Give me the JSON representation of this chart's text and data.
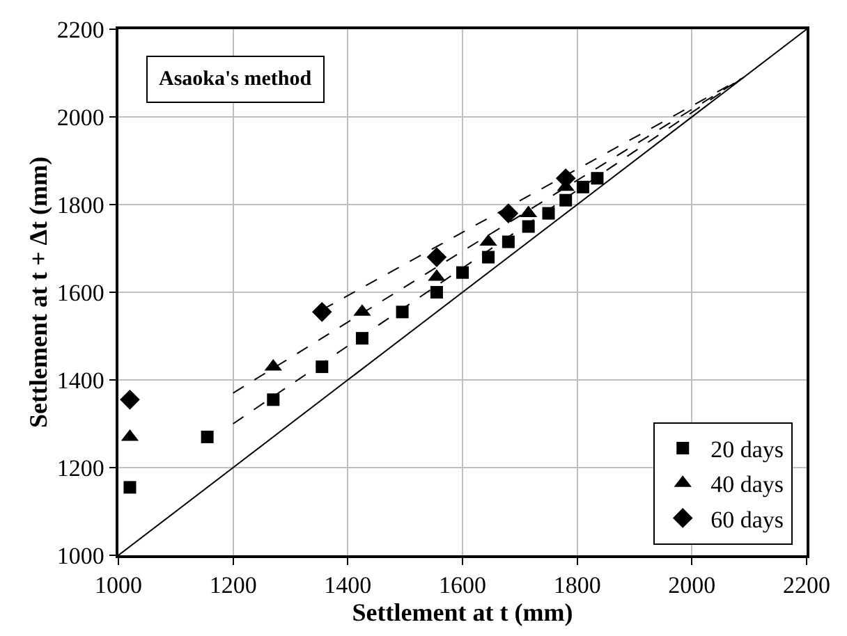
{
  "chart_data": {
    "type": "scatter",
    "xlabel": "Settlement at t (mm)",
    "ylabel": "Settlement at t + Δt (mm)",
    "xlim": [
      1000,
      2200
    ],
    "ylim": [
      1000,
      2200
    ],
    "xticks": [
      1000,
      1200,
      1400,
      1600,
      1800,
      2000,
      2200
    ],
    "yticks": [
      1000,
      1200,
      1400,
      1600,
      1800,
      2000,
      2200
    ],
    "grid": true,
    "legend": "bottom right",
    "annotations": [
      "Asaoka's method"
    ],
    "series": [
      {
        "name": "20 days",
        "color": "#000000",
        "marker": "square",
        "x": [
          1020,
          1155,
          1270,
          1355,
          1425,
          1495,
          1555,
          1600,
          1645,
          1680,
          1715,
          1750,
          1780,
          1810,
          1835
        ],
        "values": [
          1155,
          1270,
          1355,
          1430,
          1495,
          1555,
          1600,
          1645,
          1680,
          1715,
          1750,
          1780,
          1810,
          1840,
          1860
        ]
      },
      {
        "name": "40 days",
        "color": "#000000",
        "marker": "triangle",
        "x": [
          1020,
          1270,
          1425,
          1555,
          1645,
          1715,
          1780
        ],
        "values": [
          1270,
          1430,
          1555,
          1635,
          1715,
          1780,
          1840
        ]
      },
      {
        "name": "60 days",
        "color": "#000000",
        "marker": "diamond",
        "x": [
          1020,
          1355,
          1555,
          1680,
          1780
        ],
        "values": [
          1355,
          1555,
          1680,
          1780,
          1860
        ]
      },
      {
        "type": "line",
        "color": "#000000",
        "line_style": "solid",
        "x": [
          1000,
          2200
        ],
        "values": [
          1000,
          2200
        ]
      },
      {
        "type": "line",
        "color": "#000000",
        "line_style": "dashed",
        "x": [
          1200,
          2090
        ],
        "values": [
          1300,
          2090
        ]
      },
      {
        "type": "line",
        "color": "#000000",
        "line_style": "dashed",
        "x": [
          1200,
          2090
        ],
        "values": [
          1370,
          2090
        ]
      },
      {
        "type": "line",
        "color": "#000000",
        "line_style": "dashed",
        "x": [
          1355,
          2090
        ],
        "values": [
          1560,
          2090
        ]
      }
    ]
  }
}
